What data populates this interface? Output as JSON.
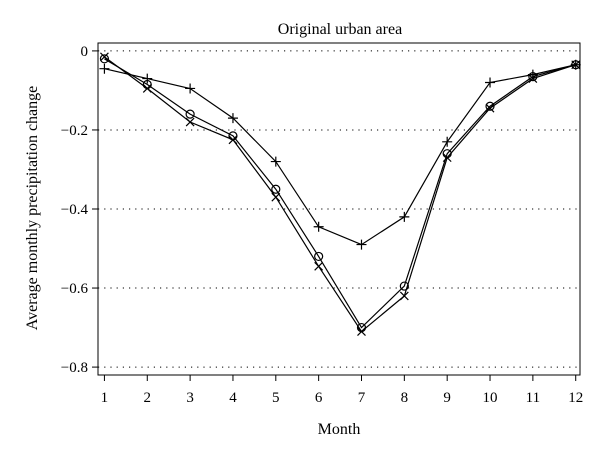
{
  "chart_data": {
    "type": "line",
    "title": "Original urban area",
    "xlabel": "Month",
    "ylabel": "Average monthly precipitation change",
    "x": [
      1,
      2,
      3,
      4,
      5,
      6,
      7,
      8,
      9,
      10,
      11,
      12
    ],
    "xlim": [
      0.85,
      12.1
    ],
    "ylim": [
      -0.82,
      0.02
    ],
    "yticks": [
      0,
      -0.2,
      -0.4,
      -0.6,
      -0.8
    ],
    "ytick_labels": [
      "0",
      "−0.2",
      "−0.4",
      "−0.6",
      "−0.8"
    ],
    "xtick_labels": [
      "1",
      "2",
      "3",
      "4",
      "5",
      "6",
      "7",
      "8",
      "9",
      "10",
      "11",
      "12"
    ],
    "grid": "horizontal dotted",
    "series": [
      {
        "marker": "circle",
        "color": "#000000",
        "values": [
          -0.02,
          -0.085,
          -0.16,
          -0.215,
          -0.35,
          -0.52,
          -0.7,
          -0.595,
          -0.26,
          -0.14,
          -0.065,
          -0.035
        ]
      },
      {
        "marker": "x",
        "color": "#000000",
        "values": [
          -0.015,
          -0.095,
          -0.18,
          -0.225,
          -0.37,
          -0.545,
          -0.71,
          -0.62,
          -0.27,
          -0.145,
          -0.07,
          -0.035
        ]
      },
      {
        "marker": "plus",
        "color": "#000000",
        "values": [
          -0.045,
          -0.07,
          -0.095,
          -0.17,
          -0.28,
          -0.445,
          -0.49,
          -0.42,
          -0.23,
          -0.08,
          -0.06,
          -0.035
        ]
      }
    ]
  }
}
